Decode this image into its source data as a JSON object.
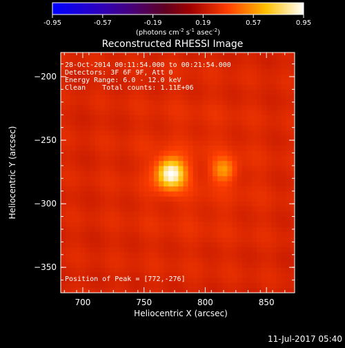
{
  "chart_data": {
    "type": "heatmap",
    "title": "Reconstructed RHESSI Image",
    "xlabel": "Heliocentric X (arcsec)",
    "ylabel": "Heliocentric Y (arcsec)",
    "xlim": [
      682,
      873
    ],
    "ylim": [
      -370,
      -181
    ],
    "xticks": [
      700,
      750,
      800,
      850
    ],
    "yticks": [
      -200,
      -250,
      -300,
      -350
    ],
    "colorbar": {
      "ticks": [
        "-0.95",
        "-0.57",
        "-0.19",
        "0.19",
        "0.57",
        "0.95"
      ],
      "range": [
        -0.95,
        0.95
      ],
      "units_prefix": "(photons cm",
      "units_exp1": "-2",
      "units_mid": " s",
      "units_exp2": "-1",
      "units_mid2": " asec",
      "units_exp3": "-2",
      "units_suffix": ")"
    },
    "annotations": [
      "28-Oct-2014 00:11:54.000 to 00:21:54.000",
      "Detectors: 3F 6F 9F, Att 0",
      "Energy Range: 6.0 - 12.0 keV",
      "Clean    Total counts: 1.11E+06"
    ],
    "peak_label": "Position of Peak = [772,-276]",
    "sources": [
      {
        "x": 772,
        "y": -276,
        "peak": 0.95
      },
      {
        "x": 815,
        "y": -273,
        "peak": 0.55
      }
    ],
    "background_level": 0.26
  },
  "footer": {
    "timestamp": "11-Jul-2017 05:40"
  }
}
